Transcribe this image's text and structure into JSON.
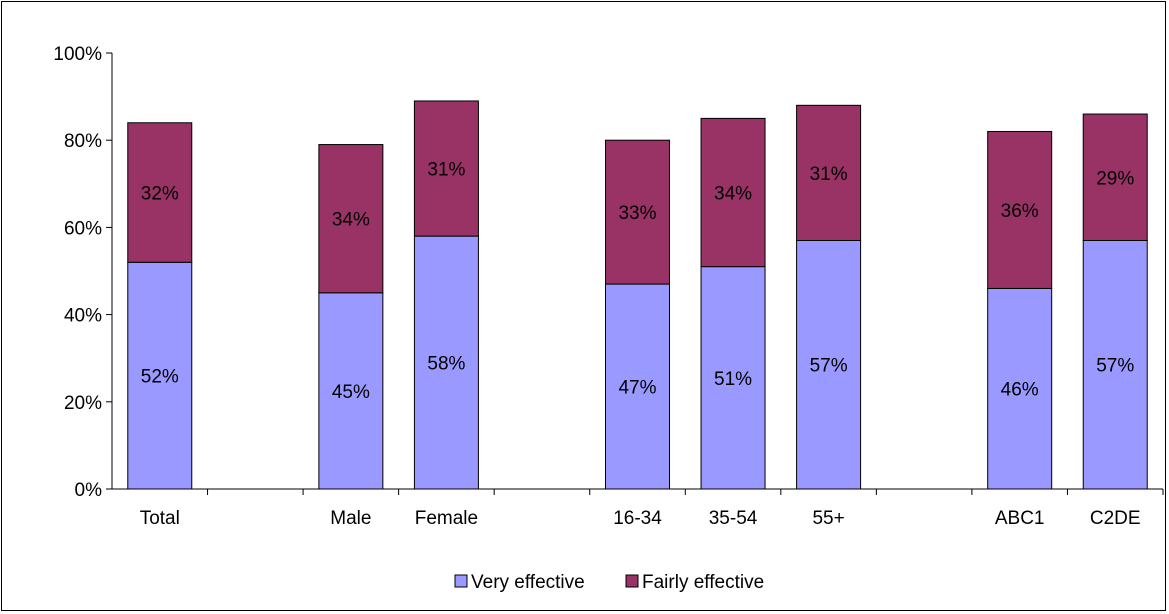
{
  "chart_data": {
    "type": "bar",
    "stacked": true,
    "categories": [
      "Total",
      "",
      "Male",
      "Female",
      "",
      "16-34",
      "35-54",
      "55+",
      "",
      "ABC1",
      "C2DE"
    ],
    "series": [
      {
        "name": "Very effective",
        "values": [
          52,
          null,
          45,
          58,
          null,
          47,
          51,
          57,
          null,
          46,
          57
        ],
        "labels": [
          "52%",
          "",
          "45%",
          "58%",
          "",
          "47%",
          "51%",
          "57%",
          "",
          "46%",
          "57%"
        ],
        "color": "#9999ff"
      },
      {
        "name": "Fairly effective",
        "values": [
          32,
          null,
          34,
          31,
          null,
          33,
          34,
          31,
          null,
          36,
          29
        ],
        "labels": [
          "32%",
          "",
          "34%",
          "31%",
          "",
          "33%",
          "34%",
          "31%",
          "",
          "36%",
          "29%"
        ],
        "color": "#993366"
      }
    ],
    "ylim": [
      0,
      100
    ],
    "yticks": [
      0,
      20,
      40,
      60,
      80,
      100
    ],
    "ytick_labels": [
      "0%",
      "20%",
      "40%",
      "60%",
      "80%",
      "100%"
    ],
    "grid": false,
    "legend": "bottom",
    "title": "",
    "xlabel": "",
    "ylabel": ""
  }
}
